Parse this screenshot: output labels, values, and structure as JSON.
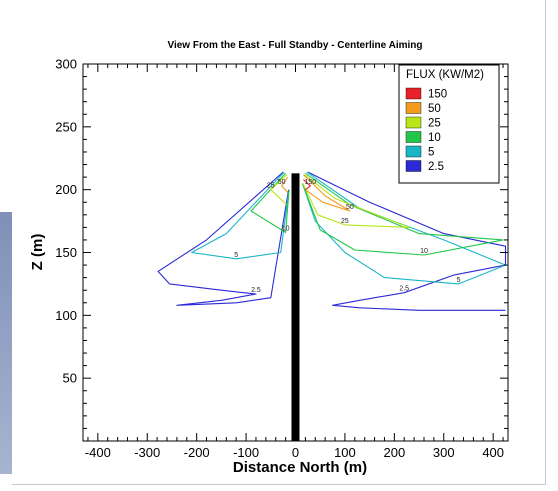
{
  "chart_data": {
    "type": "contour",
    "title": "View From the East - Full Standby - Centerline Aiming",
    "xlabel": "Distance North (m)",
    "ylabel": "Z (m)",
    "xlim": [
      -430,
      430
    ],
    "ylim": [
      0,
      300
    ],
    "x_ticks": [
      -400,
      -300,
      -200,
      -100,
      0,
      100,
      200,
      300,
      400
    ],
    "y_ticks": [
      50,
      100,
      150,
      200,
      250,
      300
    ],
    "legend": {
      "title": "FLUX (KW/M2)",
      "position": "top-right",
      "entries": [
        {
          "label": "150",
          "color": "#e8202a"
        },
        {
          "label": "50",
          "color": "#f39b1e"
        },
        {
          "label": "25",
          "color": "#b8e619"
        },
        {
          "label": "10",
          "color": "#22c64a"
        },
        {
          "label": "5",
          "color": "#1ab6c8"
        },
        {
          "label": "2.5",
          "color": "#2a2ad6"
        }
      ]
    },
    "tower": {
      "x": 0,
      "z_top": 213,
      "color": "#000000"
    },
    "contour_labels": [
      "2.5",
      "5",
      "10",
      "25",
      "50"
    ],
    "contours": [
      {
        "level": "2.5",
        "side": "south",
        "points": [
          [
            -25,
            214
          ],
          [
            -180,
            160
          ],
          [
            -278,
            135
          ],
          [
            -255,
            125
          ],
          [
            -150,
            120
          ],
          [
            -80,
            117
          ],
          [
            -150,
            112
          ],
          [
            -240,
            108
          ],
          [
            -120,
            110
          ],
          [
            -50,
            114
          ],
          [
            -14,
            200
          ]
        ]
      },
      {
        "level": "2.5",
        "side": "north",
        "points": [
          [
            25,
            214
          ],
          [
            150,
            190
          ],
          [
            300,
            165
          ],
          [
            425,
            155
          ],
          [
            425,
            140
          ],
          [
            320,
            132
          ],
          [
            220,
            118
          ],
          [
            130,
            112
          ],
          [
            75,
            108
          ],
          [
            130,
            106
          ],
          [
            250,
            104
          ],
          [
            425,
            104
          ]
        ]
      },
      {
        "level": "5",
        "side": "south",
        "points": [
          [
            -23,
            214
          ],
          [
            -140,
            165
          ],
          [
            -210,
            150
          ],
          [
            -120,
            145
          ],
          [
            -30,
            150
          ],
          [
            -14,
            198
          ]
        ]
      },
      {
        "level": "5",
        "side": "north",
        "points": [
          [
            23,
            214
          ],
          [
            130,
            185
          ],
          [
            300,
            160
          ],
          [
            425,
            140
          ],
          [
            330,
            125
          ],
          [
            180,
            130
          ],
          [
            100,
            150
          ],
          [
            40,
            175
          ],
          [
            14,
            205
          ]
        ]
      },
      {
        "level": "10",
        "side": "south",
        "points": [
          [
            -20,
            213
          ],
          [
            -90,
            183
          ],
          [
            -20,
            166
          ],
          [
            -13,
            200
          ]
        ]
      },
      {
        "level": "10",
        "side": "north",
        "points": [
          [
            20,
            213
          ],
          [
            110,
            188
          ],
          [
            250,
            165
          ],
          [
            420,
            160
          ],
          [
            260,
            148
          ],
          [
            120,
            152
          ],
          [
            50,
            168
          ],
          [
            14,
            205
          ]
        ]
      },
      {
        "level": "25",
        "side": "south",
        "points": [
          [
            -18,
            212
          ],
          [
            -50,
            200
          ],
          [
            -18,
            188
          ]
        ]
      },
      {
        "level": "25",
        "side": "north",
        "points": [
          [
            18,
            212
          ],
          [
            80,
            193
          ],
          [
            230,
            170
          ],
          [
            100,
            172
          ],
          [
            45,
            180
          ],
          [
            15,
            205
          ]
        ]
      },
      {
        "level": "50",
        "side": "south",
        "points": [
          [
            -16,
            210
          ],
          [
            -28,
            203
          ],
          [
            -16,
            198
          ]
        ]
      },
      {
        "level": "50",
        "side": "north",
        "points": [
          [
            16,
            212
          ],
          [
            60,
            195
          ],
          [
            110,
            183
          ],
          [
            55,
            190
          ],
          [
            20,
            200
          ]
        ]
      },
      {
        "level": "150",
        "side": "north",
        "points": [
          [
            16,
            208
          ],
          [
            30,
            203
          ],
          [
            20,
            200
          ]
        ]
      }
    ]
  }
}
